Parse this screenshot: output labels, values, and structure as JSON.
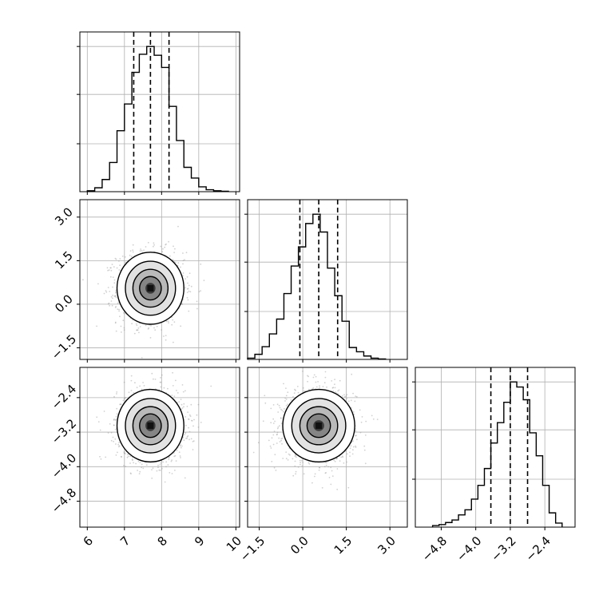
{
  "chart_data": {
    "type": "corner",
    "parameters": [
      {
        "label": "",
        "range": [
          5.8,
          10.1
        ],
        "ticks": [
          6,
          7,
          8,
          9,
          10
        ],
        "tick_labels": [
          "6",
          "7",
          "8",
          "9",
          "10"
        ],
        "quantiles": [
          7.25,
          7.7,
          8.2
        ],
        "histogram": {
          "bin_edges": [
            6.0,
            6.2,
            6.4,
            6.6,
            6.8,
            7.0,
            7.2,
            7.4,
            7.6,
            7.8,
            8.0,
            8.2,
            8.4,
            8.6,
            8.8,
            9.0,
            9.2,
            9.4,
            9.6,
            9.8
          ],
          "counts": [
            2,
            8,
            25,
            60,
            125,
            180,
            245,
            282,
            298,
            280,
            255,
            175,
            105,
            50,
            28,
            10,
            4,
            2,
            1
          ]
        }
      },
      {
        "label": "",
        "range": [
          -1.9,
          3.6
        ],
        "ticks": [
          -1.5,
          0.0,
          1.5,
          3.0
        ],
        "tick_labels": [
          "−1.5",
          "0.0",
          "1.5",
          "3.0"
        ],
        "quantiles": [
          -0.1,
          0.55,
          1.2
        ],
        "histogram": {
          "bin_edges": [
            -1.9,
            -1.65,
            -1.4,
            -1.15,
            -0.9,
            -0.65,
            -0.4,
            -0.15,
            0.1,
            0.35,
            0.6,
            0.85,
            1.1,
            1.35,
            1.6,
            1.85,
            2.1,
            2.35,
            2.6,
            2.85
          ],
          "counts": [
            3,
            12,
            30,
            60,
            95,
            155,
            220,
            265,
            320,
            342,
            300,
            215,
            150,
            90,
            28,
            18,
            8,
            3,
            1
          ]
        }
      },
      {
        "label": "",
        "range": [
          -5.4,
          -1.7
        ],
        "ticks": [
          -4.8,
          -4.0,
          -3.2,
          -2.4
        ],
        "tick_labels": [
          "−4.8",
          "−4.0",
          "−3.2",
          "−2.4"
        ],
        "quantiles": [
          -3.65,
          -3.2,
          -2.8
        ],
        "histogram": {
          "bin_edges": [
            -5.0,
            -4.85,
            -4.7,
            -4.55,
            -4.4,
            -4.25,
            -4.1,
            -3.95,
            -3.8,
            -3.65,
            -3.5,
            -3.35,
            -3.2,
            -3.05,
            -2.9,
            -2.75,
            -2.6,
            -2.45,
            -2.3,
            -2.15,
            -2.0
          ],
          "counts": [
            3,
            5,
            9,
            14,
            24,
            34,
            55,
            82,
            115,
            165,
            205,
            245,
            285,
            275,
            250,
            185,
            140,
            82,
            28,
            8
          ]
        }
      }
    ],
    "pairs": [
      {
        "x_param": 0,
        "y_param": 1,
        "peak": [
          7.7,
          0.55
        ],
        "spread": [
          0.45,
          0.62
        ]
      },
      {
        "x_param": 0,
        "y_param": 2,
        "peak": [
          7.7,
          -3.05
        ],
        "spread": [
          0.45,
          0.42
        ]
      },
      {
        "x_param": 1,
        "y_param": 2,
        "peak": [
          0.55,
          -3.05
        ],
        "spread": [
          0.62,
          0.42
        ]
      }
    ],
    "grid": true,
    "quantile_line_style": "dashed",
    "colors": {
      "line": "#000000",
      "grid": "#b0b0b0",
      "scatter": "#9a9a9a",
      "density_dark": "#3a3a3a"
    }
  }
}
